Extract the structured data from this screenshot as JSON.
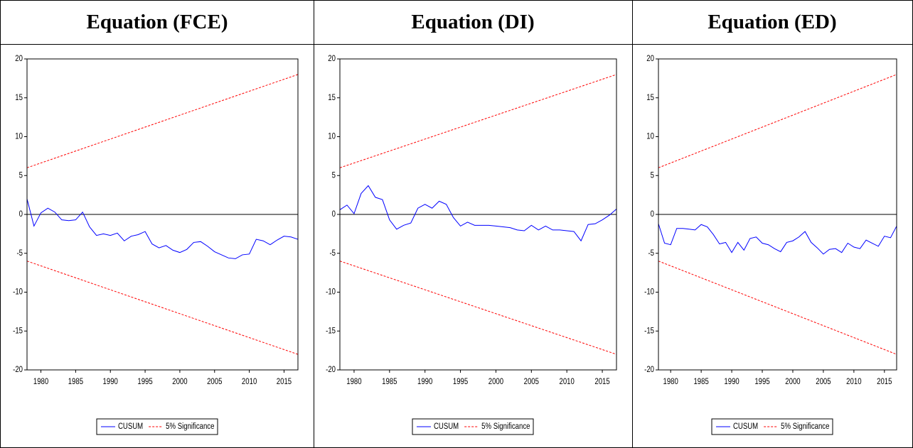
{
  "chart_data": [
    {
      "type": "line",
      "title": "Equation (FCE)",
      "x": [
        1978,
        1979,
        1980,
        1981,
        1982,
        1983,
        1984,
        1985,
        1986,
        1987,
        1988,
        1989,
        1990,
        1991,
        1992,
        1993,
        1994,
        1995,
        1996,
        1997,
        1998,
        1999,
        2000,
        2001,
        2002,
        2003,
        2004,
        2005,
        2006,
        2007,
        2008,
        2009,
        2010,
        2011,
        2012,
        2013,
        2014,
        2015,
        2016,
        2017
      ],
      "series": [
        {
          "name": "CUSUM",
          "color": "#0000ff",
          "values": [
            2,
            -1.5,
            0.2,
            0.8,
            0.3,
            -0.7,
            -0.8,
            -0.7,
            0.3,
            -1.6,
            -2.7,
            -2.5,
            -2.7,
            -2.4,
            -3.4,
            -2.8,
            -2.6,
            -2.2,
            -3.8,
            -4.3,
            -4.0,
            -4.6,
            -4.9,
            -4.5,
            -3.6,
            -3.5,
            -4.1,
            -4.8,
            -5.2,
            -5.6,
            -5.7,
            -5.2,
            -5.1,
            -3.2,
            -3.4,
            -3.9,
            -3.3,
            -2.8,
            -2.9,
            -3.2
          ]
        },
        {
          "name": "5% Significance",
          "color": "#ff0000",
          "dashed": true,
          "x": [
            1978,
            2017
          ],
          "values": [
            6,
            18
          ],
          "lower": [
            -6,
            -18
          ]
        }
      ],
      "xlim": [
        1978,
        2017
      ],
      "xticks": [
        1980,
        1985,
        1990,
        1995,
        2000,
        2005,
        2010,
        2015
      ],
      "ylim": [
        -20,
        20
      ],
      "yticks": [
        -20,
        -15,
        -10,
        -5,
        0,
        5,
        10,
        15,
        20
      ],
      "zero_line": true,
      "legend": "bottom"
    },
    {
      "type": "line",
      "title": "Equation (DI)",
      "x": [
        1978,
        1979,
        1980,
        1981,
        1982,
        1983,
        1984,
        1985,
        1986,
        1987,
        1988,
        1989,
        1990,
        1991,
        1992,
        1993,
        1994,
        1995,
        1996,
        1997,
        1998,
        1999,
        2000,
        2001,
        2002,
        2003,
        2004,
        2005,
        2006,
        2007,
        2008,
        2009,
        2010,
        2011,
        2012,
        2013,
        2014,
        2015,
        2016,
        2017
      ],
      "series": [
        {
          "name": "CUSUM",
          "color": "#0000ff",
          "values": [
            0.6,
            1.2,
            0.1,
            2.7,
            3.7,
            2.2,
            1.9,
            -0.7,
            -1.9,
            -1.4,
            -1.1,
            0.8,
            1.3,
            0.8,
            1.7,
            1.3,
            -0.4,
            -1.5,
            -1.0,
            -1.4,
            -1.4,
            -1.4,
            -1.5,
            -1.6,
            -1.7,
            -2.0,
            -2.1,
            -1.4,
            -2.0,
            -1.5,
            -2.0,
            -2.0,
            -2.1,
            -2.2,
            -3.4,
            -1.3,
            -1.2,
            -0.7,
            -0.1,
            0.7
          ]
        },
        {
          "name": "5% Significance",
          "color": "#ff0000",
          "dashed": true,
          "x": [
            1978,
            2017
          ],
          "values": [
            6,
            18
          ],
          "lower": [
            -6,
            -18
          ]
        }
      ],
      "xlim": [
        1978,
        2017
      ],
      "xticks": [
        1980,
        1985,
        1990,
        1995,
        2000,
        2005,
        2010,
        2015
      ],
      "ylim": [
        -20,
        20
      ],
      "yticks": [
        -20,
        -15,
        -10,
        -5,
        0,
        5,
        10,
        15,
        20
      ],
      "zero_line": true,
      "legend": "bottom"
    },
    {
      "type": "line",
      "title": "Equation (ED)",
      "x": [
        1978,
        1979,
        1980,
        1981,
        1982,
        1983,
        1984,
        1985,
        1986,
        1987,
        1988,
        1989,
        1990,
        1991,
        1992,
        1993,
        1994,
        1995,
        1996,
        1997,
        1998,
        1999,
        2000,
        2001,
        2002,
        2003,
        2004,
        2005,
        2006,
        2007,
        2008,
        2009,
        2010,
        2011,
        2012,
        2013,
        2014,
        2015,
        2016,
        2017
      ],
      "series": [
        {
          "name": "CUSUM",
          "color": "#0000ff",
          "values": [
            -1.2,
            -3.7,
            -3.9,
            -1.8,
            -1.8,
            -1.9,
            -2.0,
            -1.3,
            -1.6,
            -2.6,
            -3.8,
            -3.6,
            -4.9,
            -3.6,
            -4.6,
            -3.1,
            -2.9,
            -3.7,
            -3.9,
            -4.4,
            -4.8,
            -3.6,
            -3.4,
            -2.9,
            -2.2,
            -3.6,
            -4.3,
            -5.1,
            -4.5,
            -4.4,
            -4.9,
            -3.7,
            -4.2,
            -4.4,
            -3.3,
            -3.7,
            -4.1,
            -2.8,
            -3.0,
            -1.5
          ]
        },
        {
          "name": "5% Significance",
          "color": "#ff0000",
          "dashed": true,
          "x": [
            1978,
            2017
          ],
          "values": [
            6,
            18
          ],
          "lower": [
            -6,
            -18
          ]
        }
      ],
      "xlim": [
        1978,
        2017
      ],
      "xticks": [
        1980,
        1985,
        1990,
        1995,
        2000,
        2005,
        2010,
        2015
      ],
      "ylim": [
        -20,
        20
      ],
      "yticks": [
        -20,
        -15,
        -10,
        -5,
        0,
        5,
        10,
        15,
        20
      ],
      "zero_line": true,
      "legend": "bottom"
    }
  ]
}
